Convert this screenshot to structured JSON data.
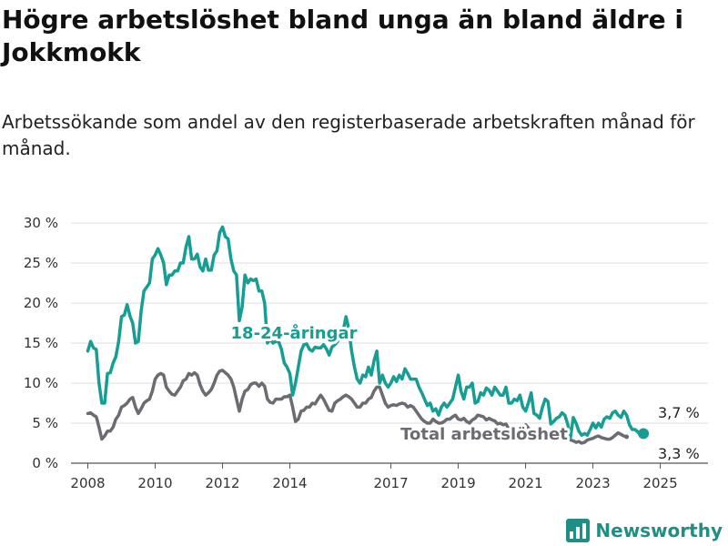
{
  "header": {
    "title": "Högre arbetslöshet bland unga än bland äldre i Jokkmokk",
    "subtitle": "Arbetssökande som andel av den registerbaserade arbetskraften månad för månad."
  },
  "brand": {
    "name": "Newsworthy",
    "icon": "bar-chart-logo-icon",
    "color": "#1f8f86"
  },
  "chart_data": {
    "type": "line",
    "x_start": "2008-01",
    "x_step": "month",
    "xlim": [
      "2007-07",
      "2026-06"
    ],
    "ylim": [
      0,
      30
    ],
    "y_ticks": [
      0,
      5,
      10,
      15,
      20,
      25,
      30
    ],
    "y_tick_labels": [
      "0 %",
      "5 %",
      "10 %",
      "15 %",
      "20 %",
      "25 %",
      "30 %"
    ],
    "x_ticks": [
      "2008-01",
      "2010-01",
      "2012-01",
      "2014-01",
      "2017-01",
      "2019-01",
      "2021-01",
      "2023-01",
      "2025-01"
    ],
    "x_tick_labels": [
      "2008",
      "2010",
      "2012",
      "2014",
      "2017",
      "2019",
      "2021",
      "2023",
      "2025"
    ],
    "grid": "horizontal",
    "series": [
      {
        "name": "18-24-åringar",
        "color": "#169e94",
        "end_label": "3,7 %",
        "values": [
          14.0,
          15.2,
          14.4,
          14.2,
          10.0,
          7.5,
          7.5,
          11.2,
          11.3,
          12.5,
          13.3,
          15.2,
          18.3,
          18.5,
          19.8,
          18.4,
          17.5,
          15.0,
          15.2,
          19.0,
          21.5,
          22.0,
          22.5,
          25.5,
          26.0,
          26.8,
          26.0,
          25.0,
          22.3,
          23.5,
          23.5,
          24.0,
          24.0,
          25.0,
          25.0,
          27.0,
          28.3,
          25.5,
          25.5,
          26.1,
          24.5,
          24.0,
          25.5,
          24.1,
          24.1,
          26.0,
          26.5,
          28.8,
          29.5,
          28.3,
          28.0,
          25.5,
          24.0,
          23.5,
          17.8,
          19.5,
          23.5,
          22.5,
          23.0,
          22.8,
          23.0,
          21.5,
          21.5,
          20.0,
          15.0,
          15.5,
          15.0,
          15.2,
          15.2,
          14.2,
          12.5,
          12.0,
          11.2,
          8.5,
          10.0,
          12.0,
          14.0,
          14.8,
          14.9,
          14.2,
          14.0,
          14.5,
          14.4,
          14.4,
          14.8,
          14.3,
          13.5,
          14.5,
          14.8,
          15.2,
          16.0,
          16.5,
          18.3,
          16.8,
          14.0,
          12.0,
          10.5,
          10.0,
          11.0,
          10.8,
          12.0,
          11.0,
          12.8,
          14.0,
          10.0,
          11.0,
          10.0,
          9.5,
          10.0,
          10.8,
          10.2,
          11.0,
          10.5,
          11.8,
          11.2,
          10.5,
          10.5,
          10.5,
          9.5,
          8.8,
          8.0,
          7.2,
          7.5,
          6.5,
          6.8,
          6.0,
          7.0,
          7.5,
          7.0,
          7.5,
          8.0,
          9.5,
          11.0,
          9.0,
          8.0,
          9.5,
          9.5,
          10.0,
          7.5,
          7.7,
          8.8,
          8.5,
          9.4,
          9.1,
          8.5,
          9.5,
          9.0,
          8.5,
          8.5,
          9.5,
          7.5,
          7.5,
          8.0,
          7.8,
          8.5,
          7.0,
          6.5,
          7.5,
          8.8,
          6.2,
          6.0,
          5.6,
          7.0,
          8.0,
          7.7,
          4.9,
          5.2,
          5.6,
          5.8,
          6.3,
          6.0,
          4.9,
          3.2,
          5.7,
          5.0,
          4.0,
          3.5,
          3.7,
          3.5,
          4.2,
          5.0,
          4.4,
          5.0,
          4.5,
          5.5,
          5.8,
          5.6,
          6.3,
          6.5,
          6.0,
          5.7,
          6.5,
          6.0,
          4.8,
          4.2,
          4.2,
          3.9,
          3.5,
          3.7
        ]
      },
      {
        "name": "Total arbetslöshet",
        "color": "#6d6b72",
        "end_label": "3,3 %",
        "values": [
          6.2,
          6.3,
          6.0,
          5.8,
          4.5,
          3.0,
          3.4,
          4.0,
          4.0,
          4.5,
          5.5,
          6.0,
          7.0,
          7.2,
          7.5,
          8.0,
          8.2,
          7.0,
          6.2,
          6.8,
          7.5,
          7.8,
          8.0,
          9.0,
          10.5,
          11.0,
          11.2,
          11.0,
          9.5,
          9.0,
          8.6,
          8.5,
          9.0,
          9.5,
          10.3,
          10.5,
          11.2,
          11.0,
          11.3,
          11.0,
          9.8,
          9.0,
          8.5,
          8.8,
          9.2,
          10.0,
          11.0,
          11.5,
          11.6,
          11.3,
          11.0,
          10.5,
          9.5,
          8.0,
          6.5,
          8.0,
          9.0,
          9.2,
          9.8,
          10.0,
          10.0,
          9.6,
          10.0,
          9.6,
          8.0,
          7.6,
          7.5,
          8.0,
          8.0,
          8.0,
          8.3,
          8.3,
          8.5,
          7.0,
          5.2,
          5.5,
          6.5,
          6.6,
          7.0,
          7.0,
          7.5,
          7.4,
          8.0,
          8.5,
          8.0,
          7.3,
          6.6,
          6.5,
          7.5,
          7.8,
          8.0,
          8.3,
          8.5,
          8.3,
          8.0,
          7.5,
          7.0,
          7.0,
          7.5,
          7.5,
          8.0,
          8.2,
          9.0,
          9.5,
          9.5,
          8.5,
          7.5,
          7.0,
          7.2,
          7.3,
          7.2,
          7.4,
          7.5,
          7.4,
          7.0,
          7.2,
          7.0,
          6.5,
          6.0,
          5.5,
          5.2,
          5.0,
          5.0,
          5.5,
          5.2,
          5.0,
          5.0,
          5.2,
          5.5,
          5.5,
          5.8,
          6.0,
          5.5,
          5.4,
          5.6,
          5.2,
          5.0,
          5.4,
          5.6,
          6.0,
          5.9,
          5.8,
          5.4,
          5.6,
          5.4,
          5.3,
          4.9,
          5.0,
          4.8,
          4.9,
          4.3,
          4.5,
          4.4,
          4.4,
          4.0,
          4.5,
          4.8,
          4.4,
          4.0,
          3.5,
          3.2,
          3.0,
          3.2,
          3.5,
          3.4,
          3.0,
          2.8,
          3.1,
          3.2,
          3.1,
          3.3,
          3.2,
          2.9,
          2.8,
          2.6,
          2.7,
          2.5,
          2.6,
          2.9,
          3.0,
          3.1,
          3.3,
          3.4,
          3.2,
          3.1,
          3.0,
          3.0,
          3.2,
          3.5,
          3.8,
          3.6,
          3.4,
          3.3
        ]
      }
    ]
  }
}
